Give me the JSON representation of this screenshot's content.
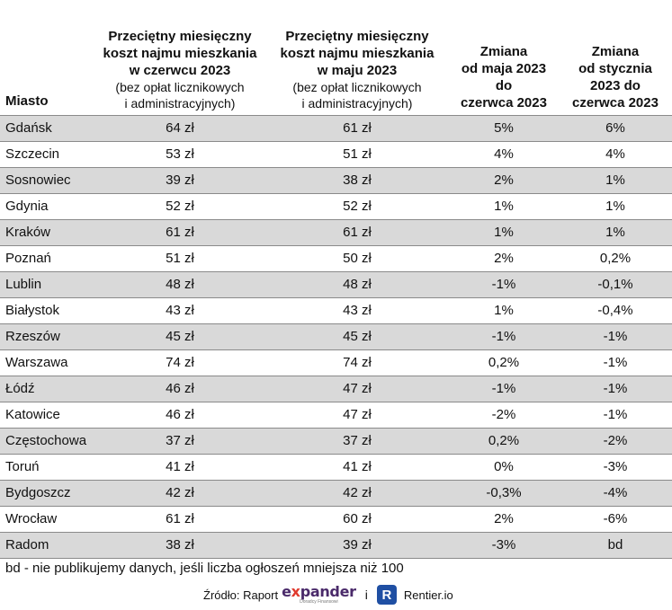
{
  "header": {
    "city": "Miasto",
    "june_bold": "Przeciętny miesięczny\nkoszt najmu mieszkania\nw czerwcu 2023",
    "june_light": "(bez opłat licznikowych\ni administracyjnych)",
    "may_bold": "Przeciętny miesięczny\nkoszt najmu mieszkania\nw maju 2023",
    "may_light": "(bez opłat licznikowych\ni administracyjnych)",
    "chg_may_june": "Zmiana\nod maja 2023\ndo\nczerwca 2023",
    "chg_jan_june": "Zmiana\nod stycznia\n2023 do\nczerwca 2023"
  },
  "rows": [
    {
      "city": "Gdańsk",
      "june": "64 zł",
      "may": "61 zł",
      "chg_may": "5%",
      "chg_jan": "6%"
    },
    {
      "city": "Szczecin",
      "june": "53 zł",
      "may": "51 zł",
      "chg_may": "4%",
      "chg_jan": "4%"
    },
    {
      "city": "Sosnowiec",
      "june": "39 zł",
      "may": "38 zł",
      "chg_may": "2%",
      "chg_jan": "1%"
    },
    {
      "city": "Gdynia",
      "june": "52 zł",
      "may": "52 zł",
      "chg_may": "1%",
      "chg_jan": "1%"
    },
    {
      "city": "Kraków",
      "june": "61 zł",
      "may": "61 zł",
      "chg_may": "1%",
      "chg_jan": "1%"
    },
    {
      "city": "Poznań",
      "june": "51 zł",
      "may": "50 zł",
      "chg_may": "2%",
      "chg_jan": "0,2%"
    },
    {
      "city": "Lublin",
      "june": "48 zł",
      "may": "48 zł",
      "chg_may": "-1%",
      "chg_jan": "-0,1%"
    },
    {
      "city": "Białystok",
      "june": "43 zł",
      "may": "43 zł",
      "chg_may": "1%",
      "chg_jan": "-0,4%"
    },
    {
      "city": "Rzeszów",
      "june": "45 zł",
      "may": "45 zł",
      "chg_may": "-1%",
      "chg_jan": "-1%"
    },
    {
      "city": "Warszawa",
      "june": "74 zł",
      "may": "74 zł",
      "chg_may": "0,2%",
      "chg_jan": "-1%"
    },
    {
      "city": "Łódź",
      "june": "46 zł",
      "may": "47 zł",
      "chg_may": "-1%",
      "chg_jan": "-1%"
    },
    {
      "city": "Katowice",
      "june": "46 zł",
      "may": "47 zł",
      "chg_may": "-2%",
      "chg_jan": "-1%"
    },
    {
      "city": "Częstochowa",
      "june": "37 zł",
      "may": "37 zł",
      "chg_may": "0,2%",
      "chg_jan": "-2%"
    },
    {
      "city": "Toruń",
      "june": "41 zł",
      "may": "41 zł",
      "chg_may": "0%",
      "chg_jan": "-3%"
    },
    {
      "city": "Bydgoszcz",
      "june": "42 zł",
      "may": "42 zł",
      "chg_may": "-0,3%",
      "chg_jan": "-4%"
    },
    {
      "city": "Wrocław",
      "june": "61 zł",
      "may": "60 zł",
      "chg_may": "2%",
      "chg_jan": "-6%"
    },
    {
      "city": "Radom",
      "june": "38 zł",
      "may": "39 zł",
      "chg_may": "-3%",
      "chg_jan": "bd"
    }
  ],
  "footnote": "bd - nie publikujemy danych, jeśli liczba ogłoszeń mniejsza niż 100",
  "source": {
    "label": "Źródło: Raport",
    "expander_pre": "e",
    "expander_x": "x",
    "expander_post": "pander",
    "expander_tag": "Doradcy Finansowi",
    "and": "i",
    "rentier_icon": "R",
    "rentier_name": "Rentier.io"
  },
  "colors": {
    "shaded_row": "#d9d9d9",
    "border": "#8a8a8a",
    "expander_text": "#4a2a6a",
    "expander_accent": "#e03a2e",
    "rentier_blue": "#1f4fa3"
  },
  "icons": {
    "expander": "expander-logo",
    "rentier": "rentier-logo-icon"
  }
}
